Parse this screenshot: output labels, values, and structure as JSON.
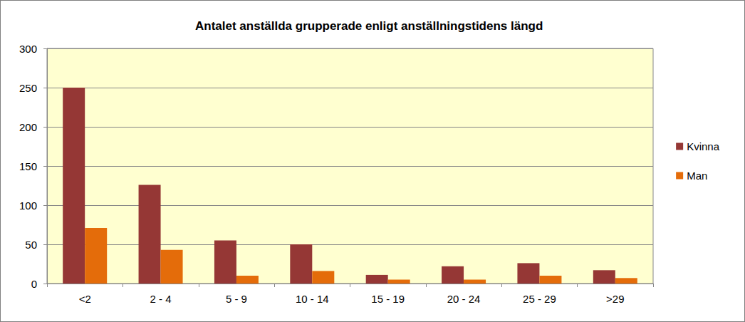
{
  "chart_data": {
    "type": "bar",
    "title": "Antalet anställda grupperade enligt anställningstidens längd",
    "categories": [
      "<2",
      "2 - 4",
      "5 - 9",
      "10 - 14",
      "15 - 19",
      "20 - 24",
      "25 - 29",
      ">29"
    ],
    "series": [
      {
        "name": "Kvinna",
        "color": "#953735",
        "values": [
          250,
          126,
          55,
          50,
          11,
          22,
          26,
          17
        ]
      },
      {
        "name": "Man",
        "color": "#e46c0a",
        "values": [
          71,
          43,
          10,
          16,
          5,
          5,
          10,
          7
        ]
      }
    ],
    "ylim": [
      0,
      300
    ],
    "yticks": [
      0,
      50,
      100,
      150,
      200,
      250,
      300
    ],
    "grid": true,
    "legend": "right"
  }
}
